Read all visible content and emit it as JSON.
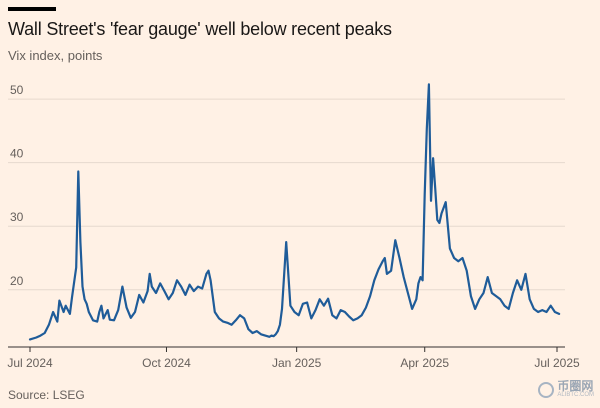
{
  "title": "Wall Street's 'fear gauge' well below recent peaks",
  "subtitle": "Vix index, points",
  "source": "Source: LSEG",
  "watermark": {
    "brand": "币圈网",
    "sub": "ALIBTC.COM"
  },
  "colors": {
    "background": "#fff1e5",
    "line": "#1f5c99",
    "grid": "#e6d9ce",
    "axis": "#33302e"
  },
  "chart_data": {
    "type": "line",
    "title": "Wall Street's 'fear gauge' well below recent peaks",
    "ylabel": "Vix index, points",
    "xlabel": "",
    "ylim": [
      11,
      53
    ],
    "yticks": [
      20,
      30,
      40,
      50
    ],
    "grid": true,
    "x_unit": "trading days since 1 Jul 2024",
    "xticks": [
      {
        "label": "Jul 2024",
        "x": 0
      },
      {
        "label": "Oct 2024",
        "x": 65
      },
      {
        "label": "Jan 2025",
        "x": 127
      },
      {
        "label": "Apr 2025",
        "x": 188
      },
      {
        "label": "Jul 2025",
        "x": 251
      }
    ],
    "series": [
      {
        "name": "Vix index",
        "x": [
          0,
          3,
          5,
          7,
          9,
          11,
          13,
          14,
          16,
          17,
          19,
          20,
          22,
          23,
          24,
          25,
          26,
          27,
          28,
          30,
          32,
          33,
          34,
          35,
          37,
          38,
          40,
          42,
          44,
          46,
          48,
          50,
          52,
          54,
          56,
          57,
          58,
          60,
          62,
          64,
          66,
          68,
          70,
          72,
          74,
          76,
          78,
          80,
          82,
          84,
          85,
          86,
          88,
          90,
          92,
          94,
          96,
          98,
          100,
          102,
          104,
          106,
          108,
          110,
          112,
          114,
          115,
          116,
          117,
          118,
          119,
          120,
          122,
          124,
          126,
          128,
          130,
          132,
          134,
          136,
          138,
          140,
          142,
          144,
          146,
          148,
          150,
          152,
          154,
          156,
          158,
          160,
          162,
          164,
          166,
          168,
          169,
          170,
          172,
          174,
          176,
          178,
          180,
          182,
          184,
          185,
          186,
          187,
          188,
          189,
          190,
          191,
          192,
          193,
          194,
          195,
          196,
          198,
          200,
          202,
          204,
          206,
          208,
          210,
          212,
          214,
          216,
          218,
          220,
          222,
          224,
          226,
          228,
          230,
          232,
          234,
          236,
          238,
          240,
          242,
          244,
          246,
          248,
          250,
          252
        ],
        "values": [
          12.2,
          12.5,
          12.8,
          13.2,
          14.5,
          16.5,
          15.0,
          18.3,
          16.5,
          17.5,
          16.2,
          18.8,
          23.5,
          38.6,
          27.5,
          20.5,
          18.5,
          17.8,
          16.5,
          15.2,
          15.0,
          16.5,
          17.5,
          15.5,
          16.8,
          15.3,
          15.2,
          16.8,
          20.5,
          17.2,
          15.6,
          16.5,
          19.2,
          18.0,
          19.8,
          22.5,
          20.5,
          19.5,
          21.0,
          19.8,
          18.5,
          19.5,
          21.5,
          20.5,
          19.2,
          20.8,
          19.8,
          20.5,
          20.2,
          22.5,
          23.0,
          21.5,
          16.5,
          15.5,
          15.0,
          14.8,
          14.5,
          15.2,
          16.0,
          15.5,
          13.8,
          13.2,
          13.5,
          13.0,
          12.8,
          12.6,
          12.8,
          12.7,
          13.0,
          13.5,
          14.5,
          17.0,
          27.5,
          17.5,
          16.5,
          16.0,
          17.8,
          18.0,
          15.5,
          16.8,
          18.5,
          17.5,
          18.6,
          16.0,
          15.5,
          16.8,
          16.5,
          15.8,
          15.2,
          15.5,
          16.0,
          17.2,
          19.0,
          21.5,
          23.2,
          24.5,
          25.0,
          22.5,
          23.0,
          27.8,
          25.0,
          22.0,
          19.5,
          17.0,
          18.5,
          21.0,
          22.0,
          21.5,
          35.0,
          45.3,
          52.3,
          34.0,
          40.7,
          36.0,
          31.0,
          30.5,
          32.0,
          33.8,
          26.5,
          25.0,
          24.5,
          25.0,
          23.0,
          19.0,
          17.0,
          18.5,
          19.5,
          22.0,
          19.5,
          19.0,
          18.5,
          17.5,
          17.0,
          19.5,
          21.5,
          20.0,
          22.5,
          18.5,
          17.0,
          16.5,
          16.8,
          16.5,
          17.5,
          16.5,
          16.2
        ]
      }
    ]
  }
}
